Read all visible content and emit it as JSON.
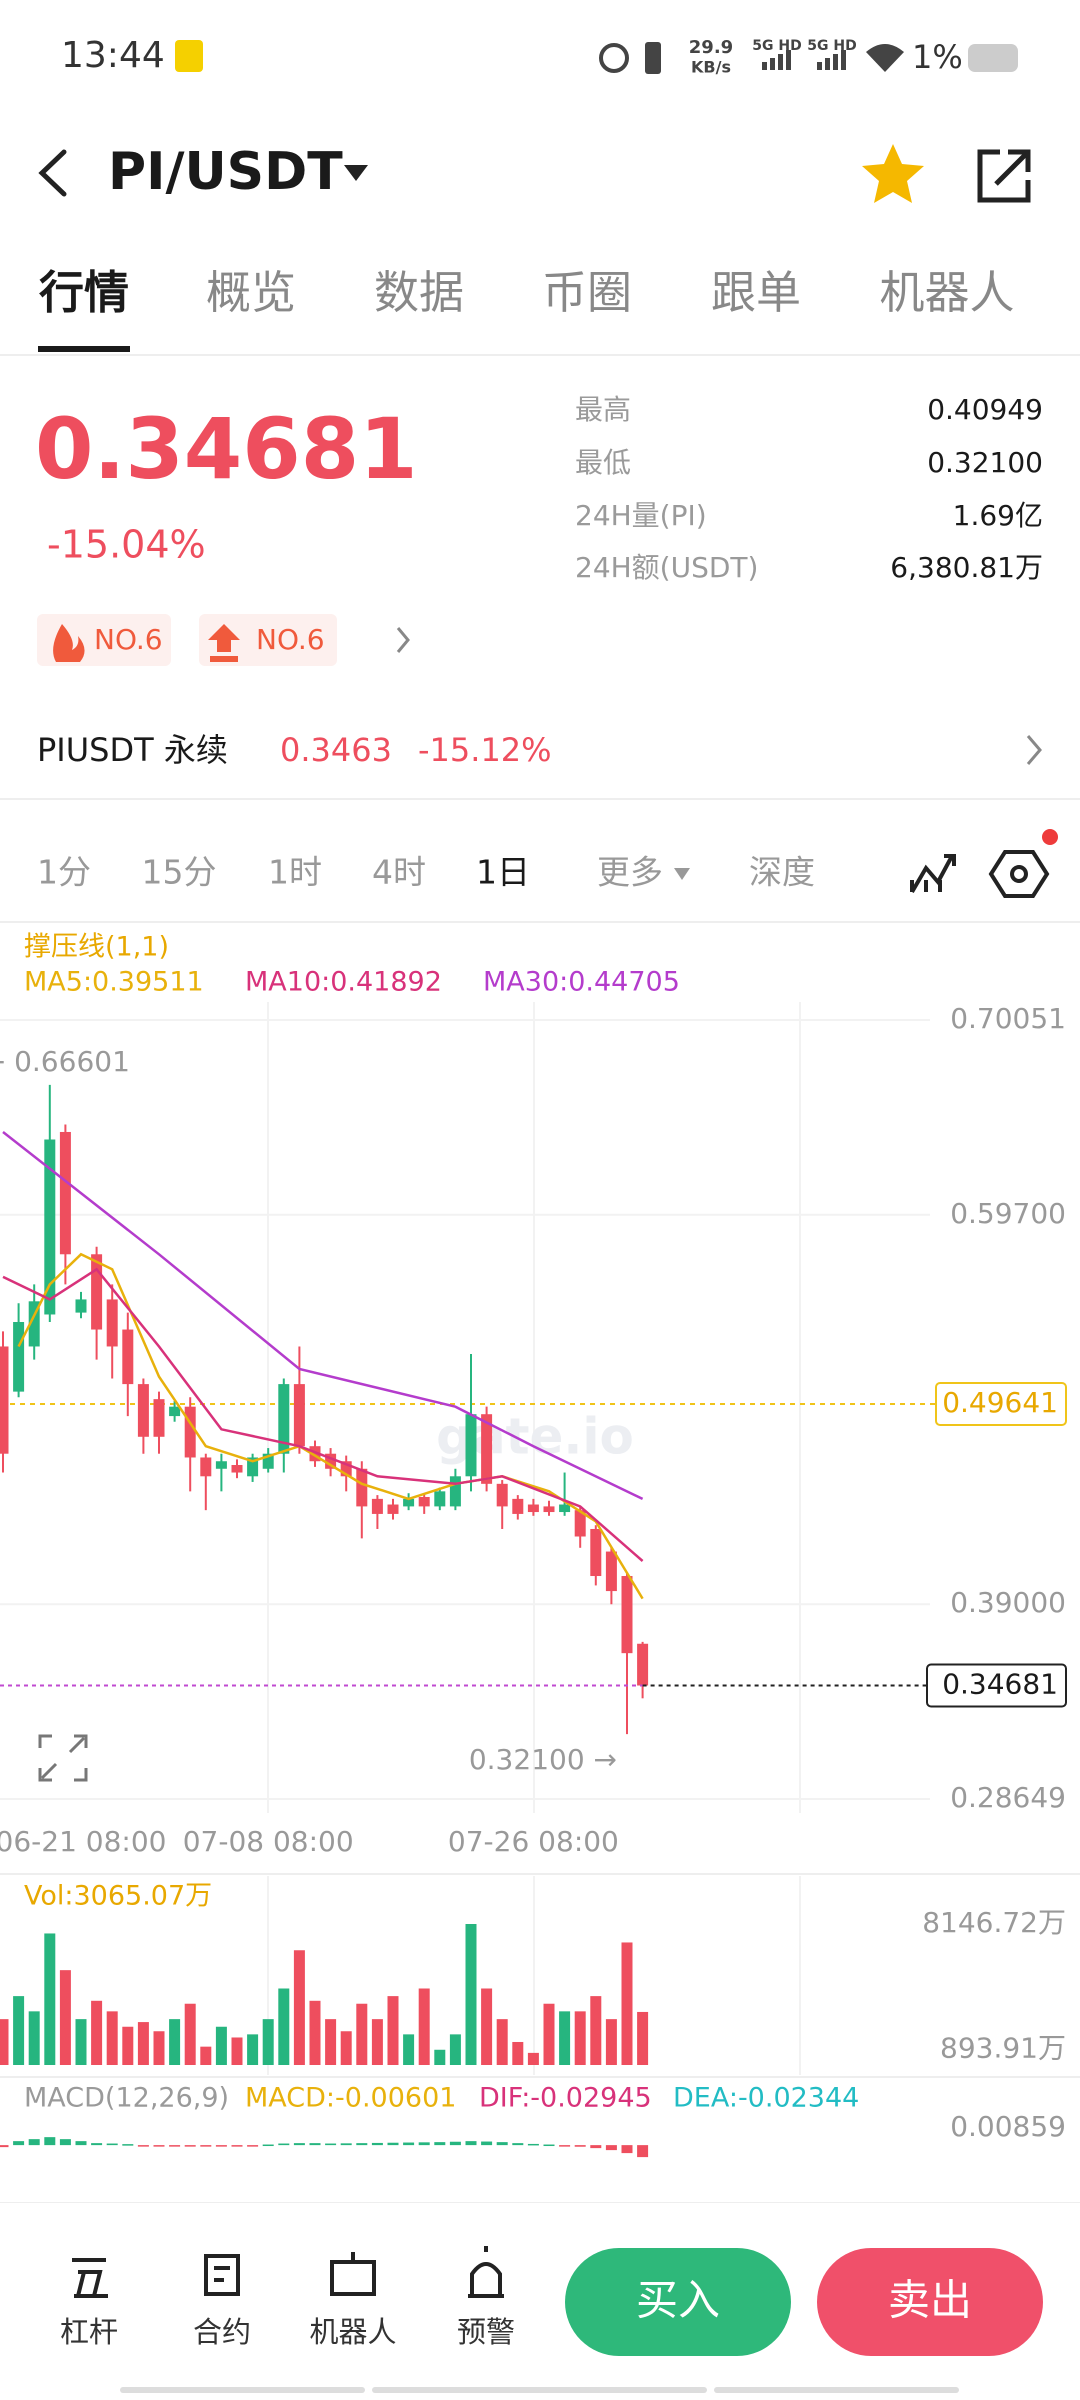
{
  "status_bar": {
    "time": "13:44",
    "speed": "29.9",
    "speed_unit": "KB/s",
    "net1": "5G HD",
    "net2": "5G HD",
    "battery": "1%"
  },
  "header": {
    "pair": "PI/USDT"
  },
  "tabs": [
    "行情",
    "概览",
    "数据",
    "币圈",
    "跟单",
    "机器人"
  ],
  "ticker": {
    "price": "0.34681",
    "change": "-15.04%",
    "badges": [
      "NO.6",
      "NO.6"
    ],
    "stats": [
      {
        "label": "最高",
        "value": "0.40949"
      },
      {
        "label": "最低",
        "value": "0.32100"
      },
      {
        "label": "24H量(PI)",
        "value": "1.69亿"
      },
      {
        "label": "24H额(USDT)",
        "value": "6,380.81万"
      }
    ]
  },
  "perpetual": {
    "name": "PIUSDT 永续",
    "price": "0.3463",
    "change": "-15.12%"
  },
  "intervals": [
    "1分",
    "15分",
    "1时",
    "4时",
    "1日",
    "更多",
    "深度"
  ],
  "chart_data": {
    "type": "candlestick",
    "indicator_label": "撑压线(1,1)",
    "watermark": "gate.io",
    "up_color": "#26b57f",
    "down_color": "#ee4e5e",
    "ylim": [
      0.28649,
      0.70051
    ],
    "yticks": [
      0.70051,
      {
        "value": 0.597,
        "label": "0.59700"
      },
      {
        "value": 0.39,
        "label": "0.39000"
      },
      0.28649
    ],
    "resistance_level": 0.49641,
    "last_price": 0.34681,
    "high_marker": {
      "value": 0.66601,
      "label": "← 0.66601"
    },
    "low_marker": {
      "value": 0.321,
      "label": "0.32100 →"
    },
    "xticks": [
      {
        "value": 5,
        "label": "06-21 08:00"
      },
      {
        "value": 17,
        "label": "07-08 08:00"
      },
      {
        "value": 34,
        "label": "07-26 08:00"
      }
    ],
    "open": [
      0.527,
      0.503,
      0.527,
      0.544,
      0.641,
      0.545,
      0.576,
      0.552,
      0.536,
      0.507,
      0.499,
      0.49,
      0.495,
      0.468,
      0.462,
      0.464,
      0.458,
      0.462,
      0.47,
      0.507,
      0.474,
      0.47,
      0.466,
      0.462,
      0.446,
      0.443,
      0.442,
      0.447,
      0.442,
      0.442,
      0.458,
      0.491,
      0.454,
      0.446,
      0.443,
      0.442,
      0.439,
      0.44,
      0.43,
      0.418,
      0.405,
      0.369
    ],
    "high": [
      0.535,
      0.55,
      0.56,
      0.66601,
      0.645,
      0.556,
      0.58,
      0.56,
      0.545,
      0.51,
      0.503,
      0.498,
      0.5,
      0.47,
      0.47,
      0.467,
      0.47,
      0.473,
      0.51,
      0.527,
      0.477,
      0.473,
      0.469,
      0.466,
      0.448,
      0.446,
      0.449,
      0.449,
      0.452,
      0.462,
      0.523,
      0.495,
      0.456,
      0.448,
      0.446,
      0.445,
      0.46,
      0.442,
      0.432,
      0.42,
      0.407,
      0.37
    ],
    "low": [
      0.46,
      0.5,
      0.52,
      0.54,
      0.56,
      0.542,
      0.52,
      0.51,
      0.49,
      0.47,
      0.47,
      0.487,
      0.45,
      0.44,
      0.45,
      0.457,
      0.455,
      0.46,
      0.46,
      0.47,
      0.463,
      0.458,
      0.45,
      0.425,
      0.43,
      0.435,
      0.44,
      0.438,
      0.44,
      0.44,
      0.45,
      0.45,
      0.43,
      0.435,
      0.437,
      0.437,
      0.437,
      0.42,
      0.4,
      0.39,
      0.321,
      0.34
    ],
    "close": [
      0.47,
      0.54,
      0.551,
      0.637,
      0.576,
      0.552,
      0.536,
      0.527,
      0.507,
      0.479,
      0.479,
      0.495,
      0.468,
      0.458,
      0.466,
      0.46,
      0.468,
      0.47,
      0.507,
      0.474,
      0.466,
      0.462,
      0.458,
      0.442,
      0.438,
      0.438,
      0.446,
      0.442,
      0.45,
      0.458,
      0.491,
      0.454,
      0.442,
      0.438,
      0.439,
      0.439,
      0.443,
      0.426,
      0.405,
      0.397,
      0.364,
      0.34681
    ],
    "ma": [
      {
        "name": "MA5",
        "label": "MA5:0.39511",
        "color": "#e8b10c",
        "x": [
          1,
          3,
          5,
          7,
          10,
          13,
          16,
          19,
          23,
          26,
          29,
          32,
          35,
          38,
          41
        ],
        "values": [
          0.527,
          0.56,
          0.576,
          0.568,
          0.511,
          0.474,
          0.466,
          0.474,
          0.454,
          0.446,
          0.454,
          0.458,
          0.45,
          0.434,
          0.393
        ]
      },
      {
        "name": "MA10",
        "label": "MA10:0.41892",
        "color": "#d8327a",
        "x": [
          0,
          3,
          6,
          10,
          14,
          19,
          24,
          29,
          32,
          37,
          41
        ],
        "values": [
          0.564,
          0.552,
          0.568,
          0.527,
          0.483,
          0.474,
          0.458,
          0.454,
          0.458,
          0.442,
          0.413
        ]
      },
      {
        "name": "MA30",
        "label": "MA30:0.44705",
        "color": "#b43ccc",
        "x": [
          0,
          10,
          19,
          29,
          34,
          41
        ],
        "values": [
          0.641,
          0.576,
          0.515,
          0.495,
          0.474,
          0.446
        ]
      }
    ],
    "volume": {
      "label": "Vol:3065.07万",
      "ylim": [
        0,
        8146.72
      ],
      "yticks": [
        {
          "value": 8146.72,
          "label": "8146.72万"
        },
        {
          "value": 893.91,
          "label": "893.91万"
        }
      ],
      "values": [
        2650,
        3980,
        3100,
        7600,
        5480,
        2650,
        3710,
        3100,
        2210,
        2480,
        1950,
        2650,
        3540,
        1060,
        2210,
        1590,
        1770,
        2650,
        4420,
        6630,
        3710,
        2650,
        1950,
        3540,
        2650,
        3980,
        1770,
        4420,
        880,
        1770,
        8146.72,
        4420,
        2650,
        1330,
        700,
        3540,
        3100,
        3100,
        3980,
        2650,
        7080,
        3065.07
      ]
    },
    "macd": {
      "labels": [
        "MACD(12,26,9)",
        "MACD:-0.00601",
        "DIF:-0.02945",
        "DEA:-0.02344"
      ],
      "label_colors": [
        "#9a9a9a",
        "#e8b10c",
        "#d8327a",
        "#22bcc4"
      ],
      "ylim": [
        -0.02,
        0.00859
      ],
      "yticks": [
        0.00859
      ],
      "values": [
        -0.001,
        0.002,
        0.003,
        0.004,
        0.003,
        0.002,
        0.001,
        0.0008,
        0.0005,
        -0.0003,
        -0.0005,
        -0.0006,
        -0.0007,
        -0.0006,
        -0.0005,
        -0.0004,
        -0.0003,
        0.0003,
        0.0008,
        0.001,
        0.001,
        0.0008,
        0.0009,
        0.001,
        0.0011,
        0.0012,
        0.0013,
        0.0014,
        0.0015,
        0.0017,
        0.002,
        0.0018,
        0.0015,
        0.001,
        0.0006,
        0.0003,
        -0.0003,
        -0.0008,
        -0.0015,
        -0.0025,
        -0.004,
        -0.00601
      ]
    }
  },
  "nav": [
    "杠杆",
    "合约",
    "机器人",
    "预警"
  ],
  "buttons": [
    "买入",
    "卖出"
  ]
}
